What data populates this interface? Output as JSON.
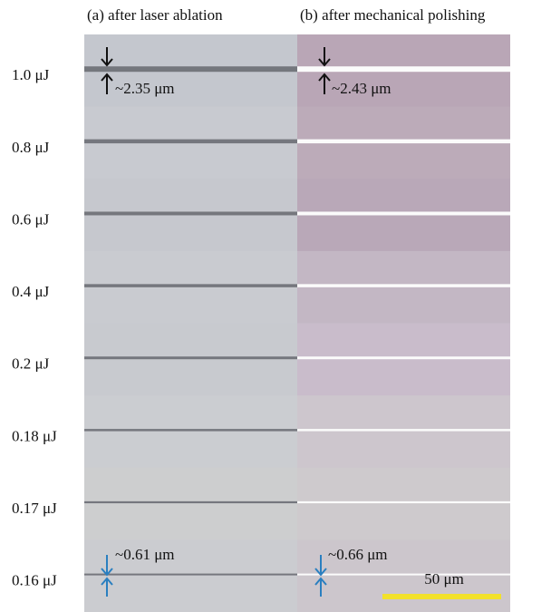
{
  "header": {
    "panel_a": "(a) after laser ablation",
    "panel_b": "(b) after mechanical polishing"
  },
  "rows": [
    "1.0 μJ",
    "0.8 μJ",
    "0.6 μJ",
    "0.4 μJ",
    "0.2 μJ",
    "0.18 μJ",
    "0.17 μJ",
    "0.16 μJ"
  ],
  "annotations": {
    "top_a": "~2.35 μm",
    "top_b": "~2.43 μm",
    "bottom_a": "~0.61 μm",
    "bottom_b": "~0.66 μm"
  },
  "scale_bar": "50 μm"
}
